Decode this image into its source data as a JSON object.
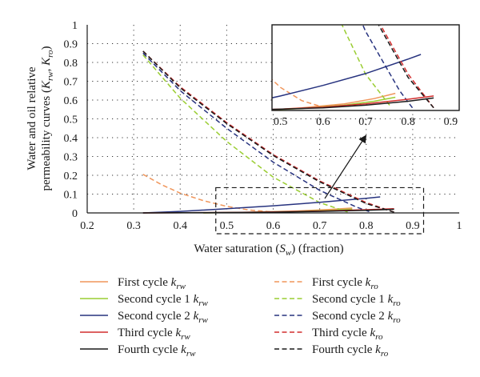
{
  "chart_data": {
    "type": "line",
    "xlabel": "Water saturation (S_w) (fraction)",
    "ylabel": "Water and oil relative permeability curves (K_rw, K_ro)",
    "xlim": [
      0.2,
      1.0
    ],
    "ylim": [
      0,
      1.0
    ],
    "x_ticks": [
      "0.2",
      "0.3",
      "0.4",
      "0.5",
      "0.6",
      "0.7",
      "0.8",
      "0.9",
      "1"
    ],
    "y_ticks": [
      "0",
      "0.1",
      "0.2",
      "0.3",
      "0.4",
      "0.5",
      "0.6",
      "0.7",
      "0.8",
      "0.9",
      "1"
    ],
    "grid": "dotted",
    "legend_position": "bottom",
    "series": [
      {
        "name": "First cycle k_rw",
        "color": "#f0955a",
        "style": "solid",
        "points": [
          [
            0.45,
            0.0
          ],
          [
            0.55,
            0.004
          ],
          [
            0.65,
            0.01
          ],
          [
            0.72,
            0.018
          ],
          [
            0.77,
            0.026
          ]
        ]
      },
      {
        "name": "First cycle k_ro",
        "color": "#f0955a",
        "style": "dashed",
        "points": [
          [
            0.32,
            0.205
          ],
          [
            0.36,
            0.15
          ],
          [
            0.4,
            0.105
          ],
          [
            0.45,
            0.065
          ],
          [
            0.5,
            0.035
          ],
          [
            0.55,
            0.015
          ],
          [
            0.6,
            0.005
          ]
        ]
      },
      {
        "name": "Second cycle 1 k_rw",
        "color": "#9acd32",
        "style": "solid",
        "points": [
          [
            0.45,
            0.0
          ],
          [
            0.55,
            0.003
          ],
          [
            0.65,
            0.008
          ],
          [
            0.72,
            0.014
          ],
          [
            0.77,
            0.02
          ]
        ]
      },
      {
        "name": "Second cycle 1 k_ro",
        "color": "#9acd32",
        "style": "dashed",
        "points": [
          [
            0.32,
            0.84
          ],
          [
            0.4,
            0.61
          ],
          [
            0.5,
            0.38
          ],
          [
            0.6,
            0.19
          ],
          [
            0.7,
            0.055
          ],
          [
            0.76,
            0.005
          ]
        ]
      },
      {
        "name": "Second cycle 2 k_rw",
        "color": "#27337f",
        "style": "solid",
        "points": [
          [
            0.32,
            0.0
          ],
          [
            0.4,
            0.008
          ],
          [
            0.5,
            0.022
          ],
          [
            0.6,
            0.038
          ],
          [
            0.7,
            0.056
          ],
          [
            0.8,
            0.078
          ],
          [
            0.83,
            0.085
          ]
        ]
      },
      {
        "name": "Second cycle 2 k_ro",
        "color": "#27337f",
        "style": "dashed",
        "points": [
          [
            0.32,
            0.85
          ],
          [
            0.4,
            0.65
          ],
          [
            0.5,
            0.45
          ],
          [
            0.6,
            0.27
          ],
          [
            0.7,
            0.12
          ],
          [
            0.78,
            0.03
          ],
          [
            0.81,
            0.004
          ]
        ]
      },
      {
        "name": "Third cycle k_rw",
        "color": "#d22e2e",
        "style": "solid",
        "points": [
          [
            0.32,
            0.0
          ],
          [
            0.5,
            0.002
          ],
          [
            0.6,
            0.005
          ],
          [
            0.7,
            0.01
          ],
          [
            0.8,
            0.017
          ],
          [
            0.86,
            0.022
          ]
        ]
      },
      {
        "name": "Third cycle k_ro",
        "color": "#d22e2e",
        "style": "dashed",
        "points": [
          [
            0.32,
            0.86
          ],
          [
            0.4,
            0.67
          ],
          [
            0.5,
            0.48
          ],
          [
            0.6,
            0.31
          ],
          [
            0.7,
            0.17
          ],
          [
            0.8,
            0.055
          ],
          [
            0.86,
            0.004
          ]
        ]
      },
      {
        "name": "Fourth cycle k_rw",
        "color": "#1a1a1a",
        "style": "solid",
        "points": [
          [
            0.32,
            0.0
          ],
          [
            0.5,
            0.002
          ],
          [
            0.6,
            0.004
          ],
          [
            0.7,
            0.008
          ],
          [
            0.8,
            0.014
          ],
          [
            0.86,
            0.019
          ]
        ]
      },
      {
        "name": "Fourth cycle k_ro",
        "color": "#1a1a1a",
        "style": "dashed",
        "points": [
          [
            0.32,
            0.86
          ],
          [
            0.4,
            0.665
          ],
          [
            0.5,
            0.475
          ],
          [
            0.6,
            0.305
          ],
          [
            0.7,
            0.165
          ],
          [
            0.8,
            0.05
          ],
          [
            0.86,
            0.004
          ]
        ]
      }
    ],
    "inset": {
      "xlim": [
        0.48,
        0.92
      ],
      "ylim": [
        0,
        0.13
      ],
      "x_ticks": [
        "0.5",
        "0.6",
        "0.7",
        "0.8",
        "0.9"
      ]
    }
  },
  "legend": [
    {
      "base": "First cycle ",
      "sym": "k",
      "sub": "rw",
      "color": "#f0955a",
      "style": "solid"
    },
    {
      "base": "First cycle ",
      "sym": "k",
      "sub": "ro",
      "color": "#f0955a",
      "style": "dashed"
    },
    {
      "base": "Second cycle 1 ",
      "sym": "k",
      "sub": "rw",
      "color": "#9acd32",
      "style": "solid"
    },
    {
      "base": "Second cycle 1 ",
      "sym": "k",
      "sub": "ro",
      "color": "#9acd32",
      "style": "dashed"
    },
    {
      "base": "Second cycle 2 ",
      "sym": "k",
      "sub": "rw",
      "color": "#27337f",
      "style": "solid"
    },
    {
      "base": "Second cycle 2 ",
      "sym": "k",
      "sub": "ro",
      "color": "#27337f",
      "style": "dashed"
    },
    {
      "base": "Third cycle ",
      "sym": "k",
      "sub": "rw",
      "color": "#d22e2e",
      "style": "solid"
    },
    {
      "base": "Third cycle ",
      "sym": "k",
      "sub": "ro",
      "color": "#d22e2e",
      "style": "dashed"
    },
    {
      "base": "Fourth cycle ",
      "sym": "k",
      "sub": "rw",
      "color": "#1a1a1a",
      "style": "solid"
    },
    {
      "base": "Fourth cycle ",
      "sym": "k",
      "sub": "ro",
      "color": "#1a1a1a",
      "style": "dashed"
    }
  ],
  "xlabel_parts": {
    "a": "Water saturation (",
    "sym": "S",
    "sub": "w",
    "b": ") (fraction)"
  },
  "ylabel_parts": {
    "line1": "Water and oil relative",
    "line2a": "permeability curves (",
    "sym1": "K",
    "sub1": "rw",
    "sep": ", ",
    "sym2": "K",
    "sub2": "ro",
    "line2b": ")"
  }
}
